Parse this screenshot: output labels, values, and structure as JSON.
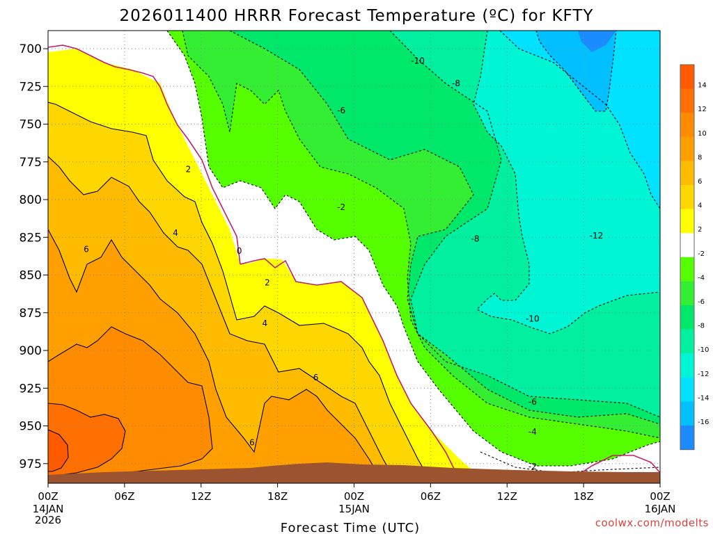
{
  "title": "2026011400 HRRR Forecast Temperature (ºC) for KFTY",
  "xlabel": "Forecast Time (UTC)",
  "credit": "coolwx.com/modelts",
  "colors": {
    "ground": "#9c5330",
    "contour_pos": "#000000",
    "contour_zero": "#c0206a",
    "contour_neg": "#000000"
  },
  "chart_data": {
    "type": "contour",
    "title": "2026011400 HRRR Forecast Temperature (ºC) for KFTY",
    "xlabel": "Forecast Time (UTC)",
    "ylabel": "",
    "x_ticks": [
      {
        "hour": 0,
        "label": "00Z",
        "sub": [
          "14JAN",
          "2026"
        ]
      },
      {
        "hour": 6,
        "label": "06Z",
        "sub": []
      },
      {
        "hour": 12,
        "label": "12Z",
        "sub": []
      },
      {
        "hour": 18,
        "label": "18Z",
        "sub": []
      },
      {
        "hour": 24,
        "label": "00Z",
        "sub": [
          "15JAN"
        ]
      },
      {
        "hour": 30,
        "label": "06Z",
        "sub": []
      },
      {
        "hour": 36,
        "label": "12Z",
        "sub": []
      },
      {
        "hour": 42,
        "label": "18Z",
        "sub": []
      },
      {
        "hour": 48,
        "label": "00Z",
        "sub": [
          "16JAN"
        ]
      }
    ],
    "xlim": [
      0,
      48
    ],
    "y_ticks": [
      700,
      725,
      750,
      775,
      800,
      825,
      850,
      875,
      900,
      925,
      950,
      975
    ],
    "ylim": [
      688,
      988
    ],
    "y_axis_inverted": true,
    "grid": true,
    "colorbar": {
      "placement": "right",
      "levels": [
        {
          "label": "14",
          "color": "#ff5a00"
        },
        {
          "label": "12",
          "color": "#ff7000"
        },
        {
          "label": "10",
          "color": "#ff8c00"
        },
        {
          "label": "8",
          "color": "#ffa000"
        },
        {
          "label": "6",
          "color": "#ffbb00"
        },
        {
          "label": "4",
          "color": "#ffd700"
        },
        {
          "label": "2",
          "color": "#ffff00"
        },
        {
          "label": "-2",
          "color": "#ffffff"
        },
        {
          "label": "-4",
          "color": "#55ff00"
        },
        {
          "label": "-6",
          "color": "#33ee33"
        },
        {
          "label": "-8",
          "color": "#00e86a"
        },
        {
          "label": "-10",
          "color": "#00f0a0"
        },
        {
          "label": "-12",
          "color": "#00f5d5"
        },
        {
          "label": "-14",
          "color": "#00e2ff"
        },
        {
          "label": "-16",
          "color": "#00c0ff"
        },
        {
          "label": "",
          "color": "#1a8cff"
        }
      ]
    },
    "contour_labels": [
      {
        "text": "-10",
        "hour": 29,
        "p": 708
      },
      {
        "text": "-8",
        "hour": 32,
        "p": 723
      },
      {
        "text": "-6",
        "hour": 23,
        "p": 741
      },
      {
        "text": "-2",
        "hour": 23,
        "p": 805
      },
      {
        "text": "-8",
        "hour": 33.5,
        "p": 826
      },
      {
        "text": "-12",
        "hour": 43,
        "p": 824
      },
      {
        "text": "-10",
        "hour": 38,
        "p": 879
      },
      {
        "text": "-6",
        "hour": 38,
        "p": 934
      },
      {
        "text": "-4",
        "hour": 38,
        "p": 954
      },
      {
        "text": "-2",
        "hour": 38,
        "p": 977
      },
      {
        "text": "2",
        "hour": 11,
        "p": 780
      },
      {
        "text": "4",
        "hour": 10,
        "p": 822
      },
      {
        "text": "6",
        "hour": 3,
        "p": 833
      },
      {
        "text": "0",
        "hour": 15,
        "p": 834
      },
      {
        "text": "2",
        "hour": 17.2,
        "p": 855
      },
      {
        "text": "4",
        "hour": 17,
        "p": 882
      },
      {
        "text": "6",
        "hour": 21,
        "p": 918
      },
      {
        "text": "6",
        "hour": 16,
        "p": 961
      }
    ]
  }
}
